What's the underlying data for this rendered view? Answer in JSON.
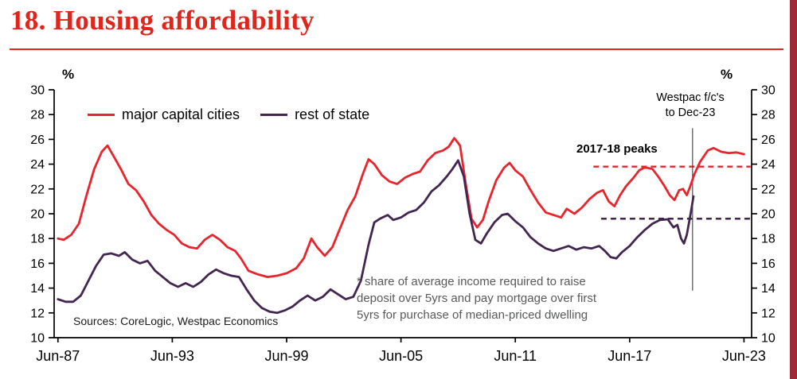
{
  "header": {
    "title": "18. Housing affordability"
  },
  "decor": {
    "title_color": "#e1251c",
    "right_bar_color": "#9e2a36"
  },
  "chart_data": {
    "type": "line",
    "title": "Housing affordability",
    "unit_left": "%",
    "unit_right": "%",
    "ylabel": "%",
    "ylim": [
      10,
      30
    ],
    "yticks": [
      10,
      12,
      14,
      16,
      18,
      20,
      22,
      24,
      26,
      28,
      30
    ],
    "xlim": [
      1987.3,
      2023.9
    ],
    "x_ticks": [
      {
        "label": "Jun-87",
        "year": 1987.5
      },
      {
        "label": "Jun-93",
        "year": 1993.5
      },
      {
        "label": "Jun-99",
        "year": 1999.5
      },
      {
        "label": "Jun-05",
        "year": 2005.5
      },
      {
        "label": "Jun-11",
        "year": 2011.5
      },
      {
        "label": "Jun-17",
        "year": 2017.5
      },
      {
        "label": "Jun-23",
        "year": 2023.5
      }
    ],
    "grid": false,
    "legend_position": "top-left-inside",
    "series": [
      {
        "name": "major capital cities",
        "color": "#e8242c",
        "points": [
          [
            1987.5,
            18.0
          ],
          [
            1987.8,
            17.9
          ],
          [
            1988.2,
            18.3
          ],
          [
            1988.6,
            19.2
          ],
          [
            1989.0,
            21.5
          ],
          [
            1989.4,
            23.6
          ],
          [
            1989.8,
            25.0
          ],
          [
            1990.1,
            25.5
          ],
          [
            1990.4,
            24.7
          ],
          [
            1990.8,
            23.6
          ],
          [
            1991.2,
            22.4
          ],
          [
            1991.6,
            21.9
          ],
          [
            1992.0,
            21.0
          ],
          [
            1992.4,
            19.9
          ],
          [
            1992.8,
            19.2
          ],
          [
            1993.2,
            18.7
          ],
          [
            1993.6,
            18.3
          ],
          [
            1994.0,
            17.6
          ],
          [
            1994.4,
            17.3
          ],
          [
            1994.8,
            17.2
          ],
          [
            1995.2,
            17.9
          ],
          [
            1995.6,
            18.3
          ],
          [
            1996.0,
            17.9
          ],
          [
            1996.4,
            17.3
          ],
          [
            1996.8,
            17.0
          ],
          [
            1997.1,
            16.4
          ],
          [
            1997.5,
            15.4
          ],
          [
            1998.0,
            15.1
          ],
          [
            1998.5,
            14.9
          ],
          [
            1999.0,
            15.0
          ],
          [
            1999.5,
            15.2
          ],
          [
            2000.0,
            15.6
          ],
          [
            2000.4,
            16.4
          ],
          [
            2000.8,
            18.0
          ],
          [
            2001.1,
            17.3
          ],
          [
            2001.5,
            16.6
          ],
          [
            2001.9,
            17.3
          ],
          [
            2002.3,
            18.8
          ],
          [
            2002.7,
            20.3
          ],
          [
            2003.1,
            21.4
          ],
          [
            2003.5,
            23.2
          ],
          [
            2003.8,
            24.4
          ],
          [
            2004.1,
            24.0
          ],
          [
            2004.5,
            23.1
          ],
          [
            2004.9,
            22.6
          ],
          [
            2005.3,
            22.4
          ],
          [
            2005.7,
            22.9
          ],
          [
            2006.1,
            23.2
          ],
          [
            2006.5,
            23.4
          ],
          [
            2006.9,
            24.3
          ],
          [
            2007.3,
            24.9
          ],
          [
            2007.7,
            25.1
          ],
          [
            2008.0,
            25.4
          ],
          [
            2008.3,
            26.1
          ],
          [
            2008.6,
            25.5
          ],
          [
            2008.9,
            22.4
          ],
          [
            2009.2,
            19.6
          ],
          [
            2009.5,
            18.9
          ],
          [
            2009.8,
            19.5
          ],
          [
            2010.1,
            21.0
          ],
          [
            2010.5,
            22.7
          ],
          [
            2010.9,
            23.7
          ],
          [
            2011.2,
            24.1
          ],
          [
            2011.5,
            23.5
          ],
          [
            2011.9,
            23.0
          ],
          [
            2012.3,
            21.9
          ],
          [
            2012.7,
            20.9
          ],
          [
            2013.1,
            20.1
          ],
          [
            2013.5,
            19.9
          ],
          [
            2013.9,
            19.7
          ],
          [
            2014.2,
            20.4
          ],
          [
            2014.6,
            20.0
          ],
          [
            2015.0,
            20.5
          ],
          [
            2015.4,
            21.2
          ],
          [
            2015.8,
            21.7
          ],
          [
            2016.1,
            21.9
          ],
          [
            2016.4,
            21.0
          ],
          [
            2016.7,
            20.6
          ],
          [
            2017.0,
            21.5
          ],
          [
            2017.3,
            22.2
          ],
          [
            2017.7,
            22.9
          ],
          [
            2018.0,
            23.5
          ],
          [
            2018.3,
            23.75
          ],
          [
            2018.7,
            23.6
          ],
          [
            2019.0,
            23.0
          ],
          [
            2019.3,
            22.3
          ],
          [
            2019.6,
            21.5
          ],
          [
            2019.85,
            21.1
          ],
          [
            2020.1,
            21.9
          ],
          [
            2020.3,
            22.0
          ],
          [
            2020.5,
            21.5
          ],
          [
            2020.7,
            22.3
          ],
          [
            2020.9,
            23.2
          ],
          [
            2021.2,
            24.2
          ],
          [
            2021.6,
            25.1
          ],
          [
            2021.9,
            25.3
          ],
          [
            2022.3,
            25.0
          ],
          [
            2022.7,
            24.9
          ],
          [
            2023.1,
            24.95
          ],
          [
            2023.5,
            24.8
          ]
        ]
      },
      {
        "name": "rest of state",
        "color": "#432650",
        "points": [
          [
            1987.5,
            13.1
          ],
          [
            1987.9,
            12.9
          ],
          [
            1988.3,
            12.9
          ],
          [
            1988.7,
            13.4
          ],
          [
            1989.1,
            14.6
          ],
          [
            1989.5,
            15.8
          ],
          [
            1989.9,
            16.7
          ],
          [
            1990.3,
            16.8
          ],
          [
            1990.7,
            16.6
          ],
          [
            1991.0,
            16.9
          ],
          [
            1991.4,
            16.3
          ],
          [
            1991.8,
            16.0
          ],
          [
            1992.2,
            16.2
          ],
          [
            1992.6,
            15.4
          ],
          [
            1993.0,
            14.9
          ],
          [
            1993.4,
            14.4
          ],
          [
            1993.8,
            14.1
          ],
          [
            1994.2,
            14.4
          ],
          [
            1994.6,
            14.1
          ],
          [
            1995.0,
            14.5
          ],
          [
            1995.4,
            15.1
          ],
          [
            1995.8,
            15.5
          ],
          [
            1996.2,
            15.2
          ],
          [
            1996.6,
            15.0
          ],
          [
            1997.0,
            14.9
          ],
          [
            1997.4,
            13.9
          ],
          [
            1997.8,
            13.0
          ],
          [
            1998.2,
            12.4
          ],
          [
            1998.6,
            12.1
          ],
          [
            1999.0,
            12.0
          ],
          [
            1999.4,
            12.2
          ],
          [
            1999.8,
            12.5
          ],
          [
            2000.2,
            13.0
          ],
          [
            2000.6,
            13.4
          ],
          [
            2001.0,
            13.0
          ],
          [
            2001.4,
            13.3
          ],
          [
            2001.8,
            13.9
          ],
          [
            2002.2,
            13.5
          ],
          [
            2002.6,
            13.1
          ],
          [
            2003.0,
            13.3
          ],
          [
            2003.4,
            14.6
          ],
          [
            2003.8,
            17.5
          ],
          [
            2004.1,
            19.3
          ],
          [
            2004.4,
            19.6
          ],
          [
            2004.8,
            19.9
          ],
          [
            2005.1,
            19.5
          ],
          [
            2005.5,
            19.7
          ],
          [
            2005.9,
            20.1
          ],
          [
            2006.3,
            20.3
          ],
          [
            2006.7,
            20.9
          ],
          [
            2007.1,
            21.8
          ],
          [
            2007.5,
            22.3
          ],
          [
            2007.9,
            23.0
          ],
          [
            2008.2,
            23.6
          ],
          [
            2008.5,
            24.3
          ],
          [
            2008.8,
            23.0
          ],
          [
            2009.1,
            20.0
          ],
          [
            2009.4,
            17.9
          ],
          [
            2009.7,
            17.6
          ],
          [
            2010.0,
            18.4
          ],
          [
            2010.4,
            19.3
          ],
          [
            2010.8,
            19.9
          ],
          [
            2011.1,
            20.0
          ],
          [
            2011.5,
            19.4
          ],
          [
            2011.9,
            18.9
          ],
          [
            2012.3,
            18.1
          ],
          [
            2012.7,
            17.6
          ],
          [
            2013.1,
            17.2
          ],
          [
            2013.5,
            17.0
          ],
          [
            2013.9,
            17.2
          ],
          [
            2014.3,
            17.4
          ],
          [
            2014.7,
            17.1
          ],
          [
            2015.1,
            17.3
          ],
          [
            2015.5,
            17.2
          ],
          [
            2015.9,
            17.4
          ],
          [
            2016.2,
            17.0
          ],
          [
            2016.5,
            16.5
          ],
          [
            2016.8,
            16.4
          ],
          [
            2017.1,
            16.9
          ],
          [
            2017.5,
            17.4
          ],
          [
            2017.9,
            18.1
          ],
          [
            2018.3,
            18.7
          ],
          [
            2018.7,
            19.2
          ],
          [
            2019.1,
            19.5
          ],
          [
            2019.5,
            19.55
          ],
          [
            2019.8,
            18.9
          ],
          [
            2020.0,
            19.1
          ],
          [
            2020.2,
            18.0
          ],
          [
            2020.35,
            17.6
          ],
          [
            2020.5,
            18.3
          ],
          [
            2020.7,
            20.0
          ],
          [
            2020.85,
            21.4
          ]
        ]
      }
    ],
    "reference_lines": [
      {
        "label": "2017-18 peak - major capital cities",
        "value": 23.8,
        "from_year": 2015.6,
        "color": "#e8242c",
        "style": "dashed"
      },
      {
        "label": "2017-18 peak - rest of state",
        "value": 19.6,
        "from_year": 2016.0,
        "color": "#432650",
        "style": "dashed"
      }
    ],
    "forecast_rule": {
      "year": 2020.8,
      "top_value": 26.9,
      "bottom_value": 13.8
    },
    "annotations": {
      "forecast_line1": "Westpac f/c's",
      "forecast_line2": "to Dec-23",
      "peaks_label": "2017-18 peaks"
    },
    "footnote_lines": [
      "* share of average income required to raise",
      "deposit over 5yrs and pay mortgage over first",
      "5yrs for purchase of median-priced dwelling"
    ],
    "sources": "Sources: CoreLogic, Westpac Economics"
  }
}
